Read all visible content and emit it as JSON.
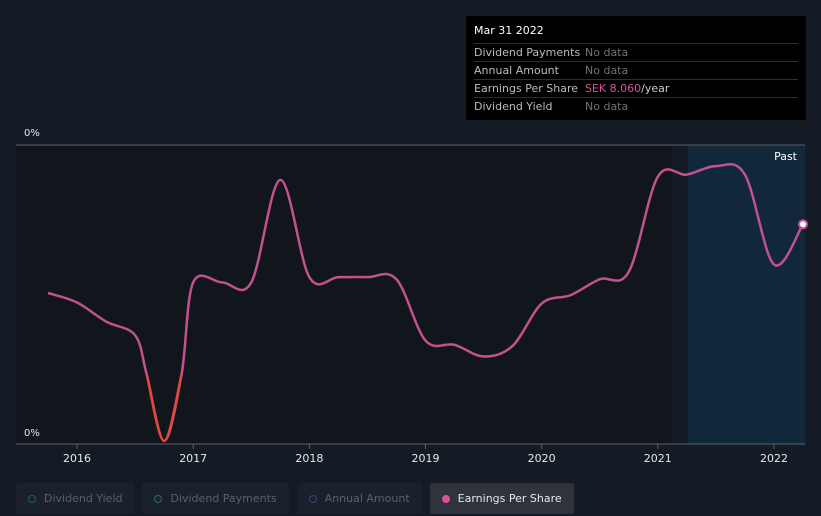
{
  "tooltip": {
    "date": "Mar 31 2022",
    "rows": [
      {
        "label": "Dividend Payments",
        "value": "No data"
      },
      {
        "label": "Annual Amount",
        "value": "No data"
      },
      {
        "label": "Earnings Per Share",
        "value": "SEK 8.060",
        "unit": "/year"
      },
      {
        "label": "Dividend Yield",
        "value": "No data"
      }
    ]
  },
  "legend": [
    {
      "label": "Dividend Yield",
      "color": "#1e5a7a",
      "active": false
    },
    {
      "label": "Dividend Payments",
      "color": "#2a6c6a",
      "active": false
    },
    {
      "label": "Annual Amount",
      "color": "#3a3f7a",
      "active": false
    },
    {
      "label": "Earnings Per Share",
      "color": "#d9539a",
      "active": true
    }
  ],
  "colors": {
    "eps_line": "#c3508f",
    "eps_negative": "#e0483b",
    "forecast_band": "#11283a",
    "past_region": "#11161d",
    "background": "#151b24"
  },
  "chart_data": {
    "type": "line",
    "y_axis_top_label": "0%",
    "y_axis_bottom_label": "0%",
    "band_label": "Past",
    "x_ticks": [
      "2016",
      "2017",
      "2018",
      "2019",
      "2020",
      "2021",
      "2022"
    ],
    "xlim": [
      2015.75,
      2022.25
    ],
    "ylim": [
      -6.5,
      21.5
    ],
    "series": [
      {
        "name": "Earnings Per Share",
        "unit": "SEK",
        "x": [
          2015.75,
          2016.0,
          2016.25,
          2016.5,
          2016.6,
          2016.75,
          2016.9,
          2017.0,
          2017.25,
          2017.5,
          2017.75,
          2018.0,
          2018.25,
          2018.5,
          2018.75,
          2019.0,
          2019.25,
          2019.5,
          2019.75,
          2020.0,
          2020.25,
          2020.5,
          2020.75,
          2021.0,
          2021.25,
          2021.5,
          2021.75,
          2022.0,
          2022.25
        ],
        "y": [
          7.5,
          6.6,
          4.8,
          3.5,
          -0.2,
          -6.5,
          -0.2,
          8.5,
          8.5,
          8.5,
          18.2,
          9.0,
          9.0,
          9.0,
          8.8,
          3.0,
          2.6,
          1.5,
          2.5,
          6.5,
          7.3,
          8.8,
          9.5,
          18.5,
          18.7,
          19.5,
          18.7,
          10.2,
          14.0
        ]
      }
    ]
  }
}
